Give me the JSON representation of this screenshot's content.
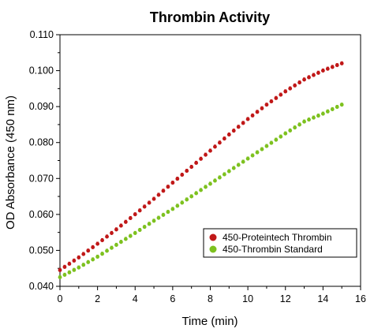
{
  "chart_data": {
    "type": "scatter",
    "title": "Thrombin Activity",
    "xlabel": "Time (min)",
    "ylabel": "OD Absorbance (450 nm)",
    "xlim": [
      0,
      16
    ],
    "ylim": [
      0.04,
      0.11
    ],
    "x_ticks": [
      "0",
      "2",
      "4",
      "6",
      "8",
      "10",
      "12",
      "14",
      "16"
    ],
    "y_ticks": [
      "0.040",
      "0.050",
      "0.060",
      "0.070",
      "0.080",
      "0.090",
      "0.100",
      "0.110"
    ],
    "grid": false,
    "legend_position": "bottom-right",
    "series": [
      {
        "name": "450-Proteintech Thrombin",
        "color": "#c01818",
        "x": [
          0,
          1,
          2,
          3,
          4,
          5,
          6,
          7,
          8,
          9,
          10,
          11,
          12,
          13,
          14,
          15
        ],
        "y": [
          0.0445,
          0.048,
          0.0518,
          0.0558,
          0.06,
          0.0643,
          0.0688,
          0.0732,
          0.0777,
          0.0822,
          0.0865,
          0.0905,
          0.0942,
          0.0975,
          0.1,
          0.102
        ]
      },
      {
        "name": "450-Thrombin Standard",
        "color": "#7dc11f",
        "x": [
          0,
          1,
          2,
          3,
          4,
          5,
          6,
          7,
          8,
          9,
          10,
          11,
          12,
          13,
          14,
          15
        ],
        "y": [
          0.0425,
          0.0452,
          0.0482,
          0.0515,
          0.0548,
          0.0582,
          0.0615,
          0.065,
          0.0685,
          0.072,
          0.0755,
          0.079,
          0.0825,
          0.0858,
          0.088,
          0.0905
        ]
      }
    ]
  }
}
